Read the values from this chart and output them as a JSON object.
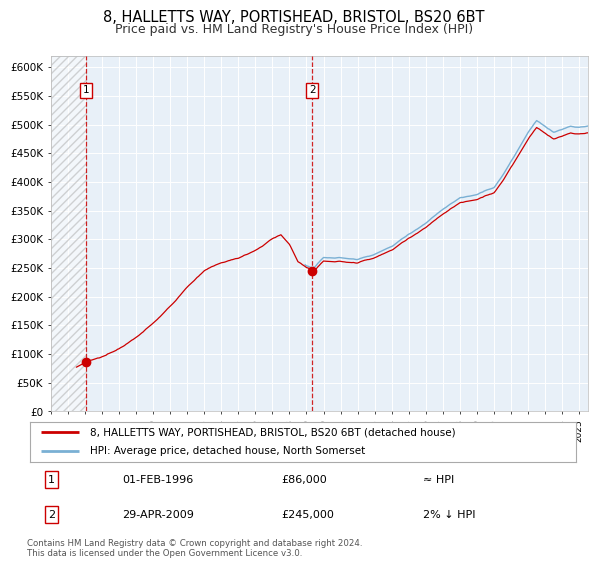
{
  "title": "8, HALLETTS WAY, PORTISHEAD, BRISTOL, BS20 6BT",
  "subtitle": "Price paid vs. HM Land Registry's House Price Index (HPI)",
  "title_fontsize": 10.5,
  "subtitle_fontsize": 9,
  "ylim": [
    0,
    620000
  ],
  "yticks": [
    0,
    50000,
    100000,
    150000,
    200000,
    250000,
    300000,
    350000,
    400000,
    450000,
    500000,
    550000,
    600000
  ],
  "ytick_labels": [
    "£0",
    "£50K",
    "£100K",
    "£150K",
    "£200K",
    "£250K",
    "£300K",
    "£350K",
    "£400K",
    "£450K",
    "£500K",
    "£550K",
    "£600K"
  ],
  "sale1_date": 1996.08,
  "sale1_price": 86000,
  "sale1_label": "1",
  "sale1_display": "01-FEB-1996",
  "sale1_amount": "£86,000",
  "sale1_hpi": "≈ HPI",
  "sale2_date": 2009.33,
  "sale2_price": 245000,
  "sale2_label": "2",
  "sale2_display": "29-APR-2009",
  "sale2_amount": "£245,000",
  "sale2_hpi": "2% ↓ HPI",
  "property_line_color": "#cc0000",
  "hpi_line_color": "#7ab0d4",
  "background_color": "#e8f0f8",
  "legend_label1": "8, HALLETTS WAY, PORTISHEAD, BRISTOL, BS20 6BT (detached house)",
  "legend_label2": "HPI: Average price, detached house, North Somerset",
  "footer": "Contains HM Land Registry data © Crown copyright and database right 2024.\nThis data is licensed under the Open Government Licence v3.0.",
  "xstart": 1994,
  "xend": 2025.5
}
